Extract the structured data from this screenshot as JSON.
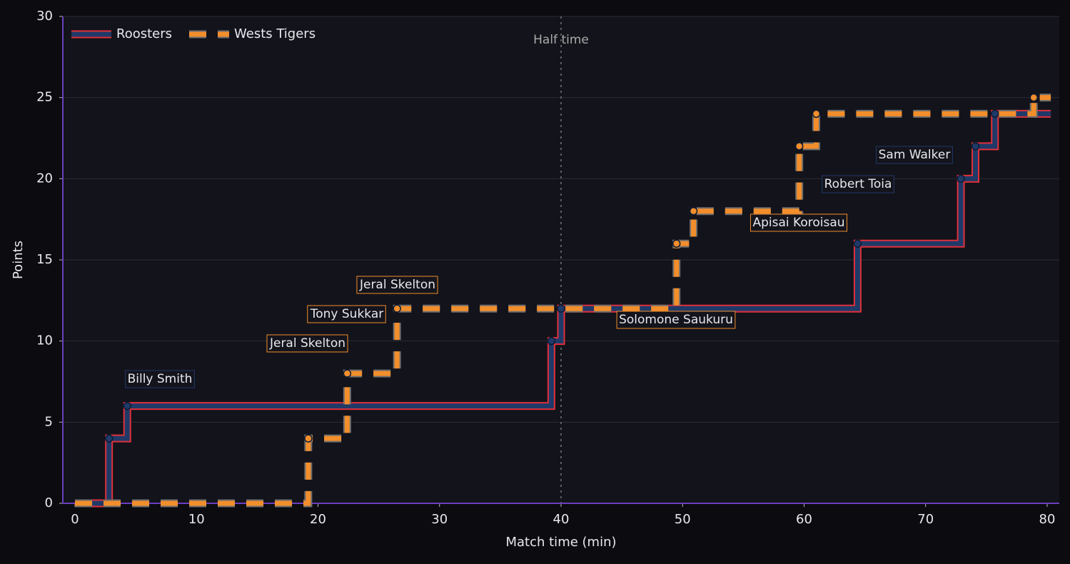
{
  "chart_data": {
    "type": "step",
    "xlabel": "Match time (min)",
    "ylabel": "Points",
    "xlim": [
      -1,
      81
    ],
    "ylim": [
      0,
      30
    ],
    "xticks": [
      0,
      10,
      20,
      30,
      40,
      50,
      60,
      70,
      80
    ],
    "yticks": [
      0,
      5,
      10,
      15,
      20,
      25,
      30
    ],
    "grid": true,
    "legend": "upper left",
    "series": [
      {
        "name": "Roosters",
        "color": "#1f3a68",
        "edge_color": "#e0303a",
        "style": "solid",
        "x": [
          0,
          2.8,
          4.3,
          39.2,
          40.0,
          64.4,
          72.9,
          74.1,
          75.7,
          80.3
        ],
        "values": [
          0,
          4,
          6,
          10,
          12,
          16,
          20,
          22,
          24,
          24
        ]
      },
      {
        "name": "Wests Tigers",
        "color": "#f28e2b",
        "edge_color": "#6e6e6e",
        "style": "dashed",
        "x": [
          0,
          19.2,
          22.4,
          26.5,
          49.5,
          50.9,
          59.6,
          61.0,
          78.9,
          80.3
        ],
        "values": [
          0,
          4,
          8,
          12,
          16,
          18,
          22,
          24,
          25,
          25
        ]
      }
    ],
    "vline": {
      "x": 40,
      "label": "Half time"
    },
    "annotations": [
      {
        "text": "Billy Smith",
        "color": "#1f3a68"
      },
      {
        "text": "Jeral Skelton",
        "color": "#f28e2b"
      },
      {
        "text": "Tony Sukkar",
        "color": "#f28e2b"
      },
      {
        "text": "Jeral Skelton",
        "color": "#f28e2b"
      },
      {
        "text": "Solomone Saukuru",
        "color": "#f28e2b"
      },
      {
        "text": "Apisai Koroisau",
        "color": "#f28e2b"
      },
      {
        "text": "Robert Toia",
        "color": "#1f3a68"
      },
      {
        "text": "Sam Walker",
        "color": "#1f3a68"
      }
    ]
  }
}
